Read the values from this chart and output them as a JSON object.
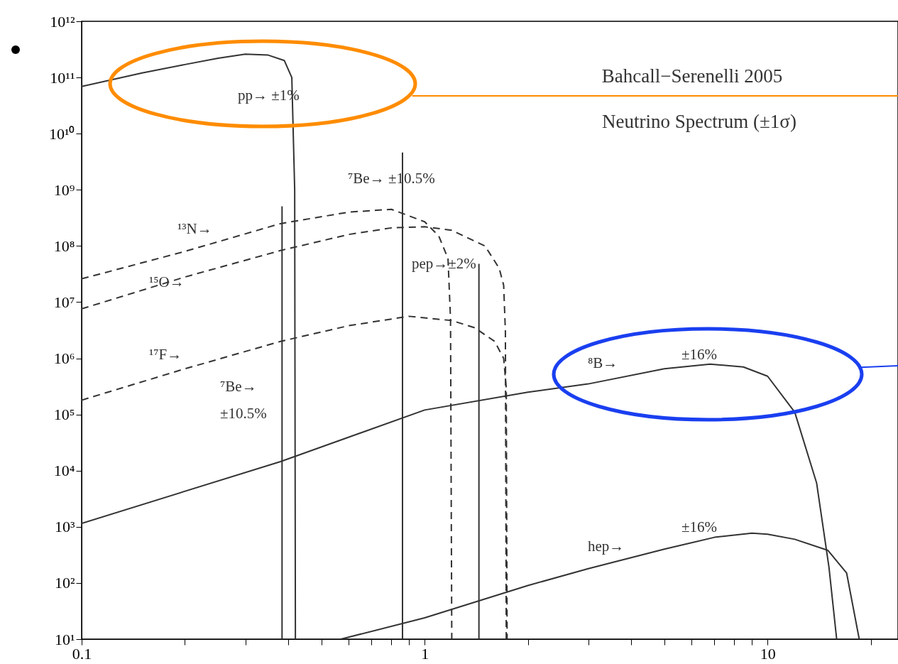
{
  "chart_data": {
    "type": "line",
    "log": "xy",
    "grid": false,
    "xlim": [
      0.1,
      24
    ],
    "ylim": [
      10,
      1000000000000.0
    ],
    "xticks": [
      0.1,
      {
        "value": 0.2,
        "label": null
      },
      {
        "value": 0.3,
        "label": null
      },
      {
        "value": 0.4,
        "label": null
      },
      {
        "value": 0.5,
        "label": null
      },
      {
        "value": 0.6,
        "label": null
      },
      {
        "value": 0.7,
        "label": null
      },
      {
        "value": 0.8,
        "label": null
      },
      {
        "value": 0.9,
        "label": null
      },
      1,
      {
        "value": 2,
        "label": null
      },
      {
        "value": 3,
        "label": null
      },
      {
        "value": 4,
        "label": null
      },
      {
        "value": 5,
        "label": null
      },
      {
        "value": 6,
        "label": null
      },
      {
        "value": 7,
        "label": null
      },
      {
        "value": 8,
        "label": null
      },
      {
        "value": 9,
        "label": null
      },
      10,
      {
        "value": 20,
        "label": null
      }
    ],
    "yticks": [
      {
        "value": 10,
        "label": "10¹"
      },
      {
        "value": 100,
        "label": "10²"
      },
      {
        "value": 1000,
        "label": "10³"
      },
      {
        "value": 10000,
        "label": "10⁴"
      },
      {
        "value": 100000,
        "label": "10⁵"
      },
      {
        "value": 1000000,
        "label": "10⁶"
      },
      {
        "value": 10000000,
        "label": "10⁷"
      },
      {
        "value": 100000000,
        "label": "10⁸"
      },
      {
        "value": 1000000000,
        "label": "10⁹"
      },
      {
        "value": 10000000000,
        "label": "10¹⁰"
      },
      {
        "value": 100000000000,
        "label": "10¹¹"
      },
      {
        "value": 1000000000000,
        "label": "10¹²"
      }
    ],
    "series": [
      {
        "color": "#333333",
        "line_style": "solid",
        "x": [
          0.1,
          0.15,
          0.2,
          0.25,
          0.3,
          0.35,
          0.39,
          0.41,
          0.418,
          0.42
        ],
        "values": [
          69000000000.0,
          120000000000.0,
          170000000000.0,
          220000000000.0,
          260000000000.0,
          250000000000.0,
          200000000000.0,
          100000000000.0,
          1000000000.0,
          10
        ]
      },
      {
        "color": "#333333",
        "line_style": "solid",
        "x": [
          0.384,
          0.384
        ],
        "values": [
          10,
          510000000.0
        ]
      },
      {
        "color": "#333333",
        "line_style": "solid",
        "x": [
          0.862,
          0.862
        ],
        "values": [
          10,
          4600000000.0
        ]
      },
      {
        "color": "#333333",
        "line_style": "solid",
        "x": [
          1.44,
          1.44
        ],
        "values": [
          10,
          48000000.0
        ]
      },
      {
        "color": "#333333",
        "line_style": "dashed",
        "x": [
          0.1,
          0.2,
          0.38,
          0.6,
          0.8,
          1.0,
          1.1,
          1.17,
          1.19,
          1.2
        ],
        "values": [
          26000000.0,
          80000000.0,
          250000000.0,
          400000000.0,
          450000000.0,
          270000000.0,
          150000000.0,
          60000000.0,
          5000000.0,
          10
        ]
      },
      {
        "color": "#333333",
        "line_style": "dashed",
        "x": [
          0.1,
          0.2,
          0.38,
          0.6,
          0.8,
          1.0,
          1.2,
          1.5,
          1.65,
          1.7,
          1.72,
          1.73
        ],
        "values": [
          7600000.0,
          28000000.0,
          83000000.0,
          160000000.0,
          210000000.0,
          220000000.0,
          190000000.0,
          100000000.0,
          40000000.0,
          20000000.0,
          3000000.0,
          10
        ]
      },
      {
        "color": "#333333",
        "line_style": "dashed",
        "x": [
          0.1,
          0.2,
          0.38,
          0.6,
          0.9,
          1.2,
          1.4,
          1.6,
          1.7,
          1.73,
          1.74
        ],
        "values": [
          180000.0,
          650000.0,
          2000000.0,
          3800000.0,
          5600000.0,
          4700000.0,
          3500000.0,
          2000000.0,
          1000000.0,
          300000.0,
          10
        ]
      },
      {
        "color": "#333333",
        "line_style": "solid",
        "x": [
          0.1,
          0.38,
          1,
          2,
          3,
          5,
          6.8,
          8.5,
          10,
          12,
          13.9,
          15.1,
          15.9
        ],
        "values": [
          1150,
          14500,
          120000.0,
          250000.0,
          350000.0,
          650000.0,
          790000.0,
          700000.0,
          480000.0,
          110000.0,
          6000,
          190,
          10
        ]
      },
      {
        "color": "#333333",
        "line_style": "solid",
        "x": [
          0.57,
          1,
          2,
          3,
          5,
          7,
          9,
          10,
          12,
          15,
          17,
          18.5
        ],
        "values": [
          10,
          24,
          90,
          180,
          400,
          650,
          770,
          740,
          600,
          380,
          150,
          10
        ]
      },
      {
        "color": "#ff8c00",
        "line_style": "solid",
        "x": [
          0.92,
          24
        ],
        "values": [
          47000000000.0,
          47000000000.0
        ]
      },
      {
        "color": "#1a3ff0",
        "line_style": "solid",
        "x": [
          18.7,
          24
        ],
        "values": [
          690000.0,
          740000.0
        ]
      }
    ],
    "annotations": [
      "Bahcall−Serenelli 2005",
      "Neutrino Spectrum (±1σ)",
      "pp→  ±1%",
      "⁷Be→  ±10.5%",
      "¹³N→",
      "¹⁵O→",
      "pep→±2%",
      "¹⁷F→",
      "⁷Be→",
      "±10.5%",
      "⁸B→",
      "±16%",
      "hep→",
      "±16%"
    ]
  }
}
